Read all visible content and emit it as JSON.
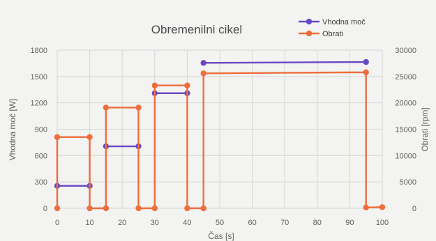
{
  "chart_data": {
    "type": "line",
    "title": "Obremenilni cikel",
    "xlabel": "Čas [s]",
    "ylabel_left": "Vhodna moč [W]",
    "ylabel_right": "Obrati [rpm]",
    "xlim": [
      0,
      100
    ],
    "xticks": [
      "0",
      "10",
      "20",
      "30",
      "40",
      "50",
      "60",
      "70",
      "80",
      "90",
      "100"
    ],
    "ylim_left": [
      0,
      1800
    ],
    "yticks_left": [
      "0",
      "300",
      "600",
      "900",
      "1200",
      "1500",
      "1800"
    ],
    "ylim_right": [
      0,
      30000
    ],
    "yticks_right": [
      "0",
      "5000",
      "10000",
      "15000",
      "20000",
      "25000",
      "30000"
    ],
    "grid": true,
    "legend_position": "top-right",
    "series": [
      {
        "name": "Vhodna moč",
        "axis": "left",
        "color": "#6a48c4",
        "segments": [
          [
            [
              0,
              255
            ],
            [
              10,
              255
            ]
          ],
          [
            [
              15,
              705
            ],
            [
              25,
              705
            ]
          ],
          [
            [
              30,
              1310
            ],
            [
              40,
              1310
            ]
          ],
          [
            [
              45,
              1655
            ],
            [
              95,
              1665
            ]
          ]
        ]
      },
      {
        "name": "Obrati",
        "axis": "right",
        "color": "#ee6e3c",
        "points": [
          [
            0,
            0
          ],
          [
            0,
            13500
          ],
          [
            10,
            13500
          ],
          [
            10,
            0
          ],
          [
            15,
            0
          ],
          [
            15,
            19100
          ],
          [
            25,
            19100
          ],
          [
            25,
            0
          ],
          [
            30,
            0
          ],
          [
            30,
            23300
          ],
          [
            40,
            23300
          ],
          [
            40,
            0
          ],
          [
            45,
            0
          ],
          [
            45,
            25600
          ],
          [
            95,
            25800
          ],
          [
            95,
            150
          ],
          [
            100,
            200
          ]
        ]
      }
    ]
  }
}
